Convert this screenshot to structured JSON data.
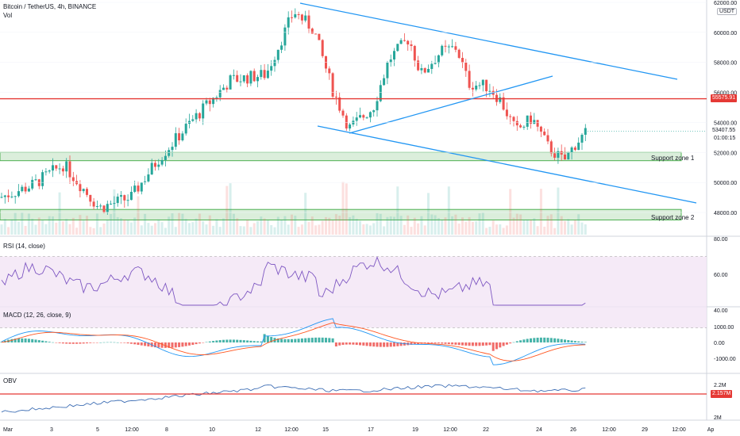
{
  "header": {
    "symbol_title": "Bitcoin / TetherUS, 4h, BINANCE",
    "volume_label": "Vol",
    "currency": "USDT"
  },
  "main": {
    "price_axis_ticks": [
      "62000.00",
      "60000.00",
      "58000.00",
      "56000.00",
      "54000.00",
      "52000.00",
      "50000.00",
      "48000.00"
    ],
    "tick_values": [
      62000,
      60000,
      58000,
      56000,
      54000,
      52000,
      50000,
      48000
    ],
    "resistance_line": {
      "label": "55575.91",
      "value": 55575.91,
      "color": "#e53935"
    },
    "last_price": {
      "label": "53407.55",
      "value": 53407.55,
      "countdown": "01:00:15"
    },
    "zones": [
      {
        "label": "Support zone 1",
        "low": 51450,
        "high": 52000
      },
      {
        "label": "Support zone 2",
        "low": 47500,
        "high": 48200
      }
    ],
    "colors": {
      "up": "#26a69a",
      "down": "#ef5350",
      "trendline": "#2196f3",
      "zone_fill": "#cfe8cf",
      "zone_border": "#4caf50"
    }
  },
  "rsi": {
    "title": "RSI (14, close)",
    "ticks": [
      "80.00",
      "60.00",
      "40.00"
    ],
    "upper_band": 70,
    "lower_band": 30,
    "color": "#7e57c2"
  },
  "macd": {
    "title": "MACD (12, 26, close, 9)",
    "ticks": [
      "1000.00",
      "0.00",
      "-1000.00"
    ],
    "macd_color": "#2196f3",
    "signal_color": "#ff5722"
  },
  "obv": {
    "title": "OBV",
    "ticks": [
      "2.2M",
      "2M"
    ],
    "value_label": "2.157M",
    "color": "#3f6fb5"
  },
  "time_axis": {
    "labels": [
      "Mar",
      "3",
      "5",
      "12:00",
      "8",
      "10",
      "12",
      "12:00",
      "15",
      "17",
      "19",
      "12:00",
      "22",
      "24",
      "26",
      "12:00",
      "29",
      "12:00",
      "Ap"
    ]
  }
}
